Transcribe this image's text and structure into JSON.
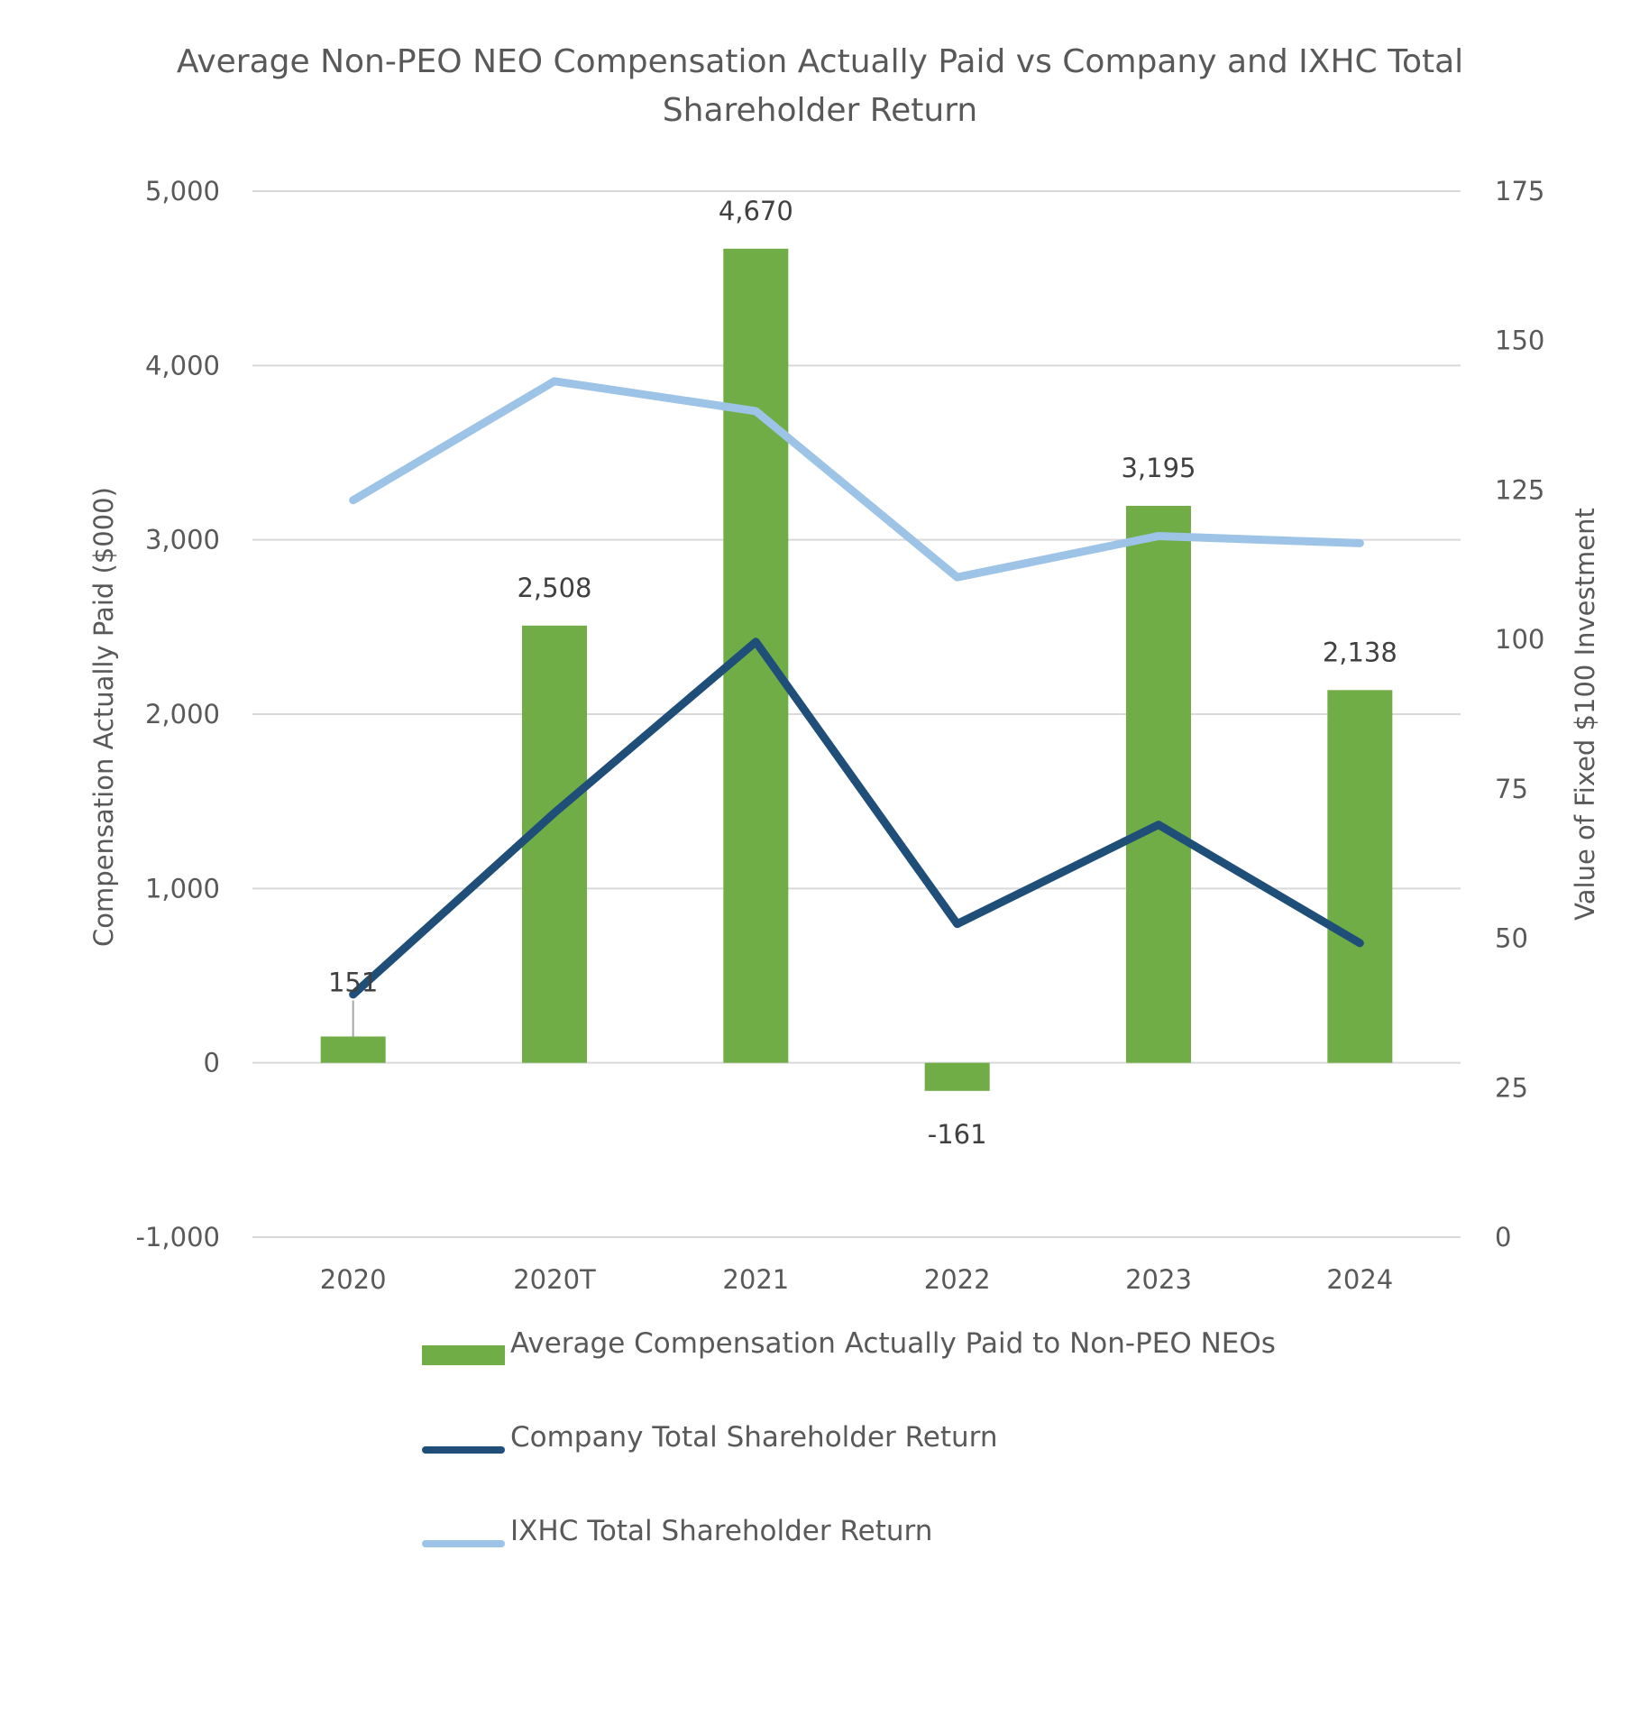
{
  "chart_data": {
    "type": "bar",
    "title_lines": [
      "Average Non-PEO NEO Compensation Actually Paid vs Company and IXHC Total",
      "Shareholder Return"
    ],
    "categories": [
      "2020",
      "2020T",
      "2021",
      "2022",
      "2023",
      "2024"
    ],
    "ylabel": "Compensation Actually Paid ($000)",
    "y2label": "Value of Fixed $100 Investment",
    "ylim": [
      -1000,
      5000
    ],
    "y2lim": [
      0,
      175
    ],
    "yticks": [
      -1000,
      0,
      1000,
      2000,
      3000,
      4000,
      5000
    ],
    "yticklabels": [
      "-1,000",
      "0",
      "1,000",
      "2,000",
      "3,000",
      "4,000",
      "5,000"
    ],
    "y2ticks": [
      0,
      25,
      50,
      75,
      100,
      125,
      150,
      175
    ],
    "y2ticklabels": [
      "0",
      "25",
      "50",
      "75",
      "100",
      "125",
      "150",
      "175"
    ],
    "grid": true,
    "legend_position": "bottom",
    "series": [
      {
        "name": "Average Compensation Actually Paid to Non-PEO NEOs",
        "type": "bar",
        "axis": "left",
        "color": "#70AD47",
        "values": [
          151,
          2508,
          4670,
          -161,
          3195,
          2138
        ],
        "labels": [
          "151",
          "2,508",
          "4,670",
          "-161",
          "3,195",
          "2,138"
        ]
      },
      {
        "name": "Company Total Shareholder Return",
        "type": "line",
        "axis": "right",
        "color": "#1F4E79",
        "values": [
          40.6,
          71,
          99.6,
          52.4,
          69,
          49.2
        ]
      },
      {
        "name": "IXHC Total Shareholder Return",
        "type": "line",
        "axis": "right",
        "color": "#9DC3E6",
        "values": [
          123.3,
          143.2,
          138.2,
          110.4,
          117.3,
          116.1
        ]
      }
    ]
  }
}
